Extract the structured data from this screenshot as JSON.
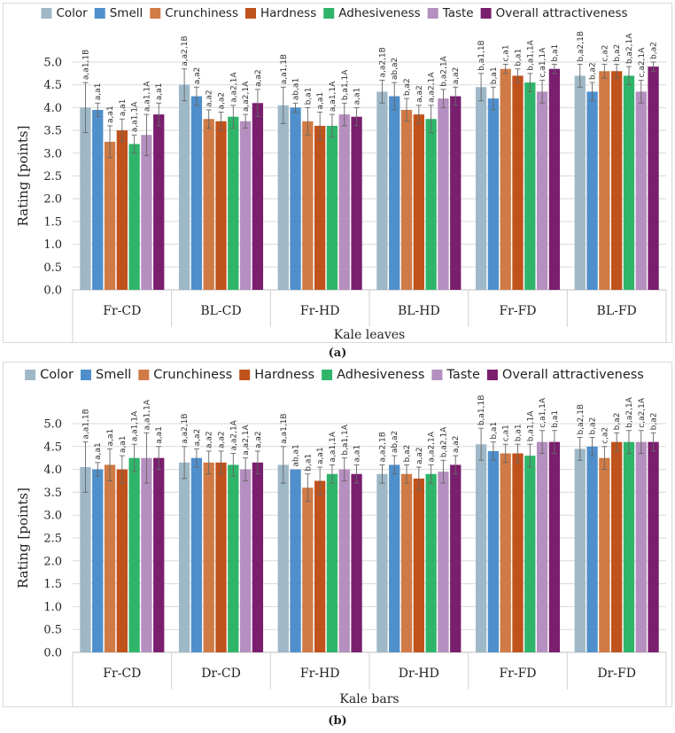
{
  "chart_data": [
    {
      "type": "bar",
      "panel_label": "(a)",
      "xlabel": "Kale leaves",
      "ylabel": "Rating [points]",
      "ylim": [
        0,
        5
      ],
      "yticks": [
        "0.0",
        "0.5",
        "1.0",
        "1.5",
        "2.0",
        "2.5",
        "3.0",
        "3.5",
        "4.0",
        "4.5",
        "5.0"
      ],
      "legend_position": "top",
      "categories": [
        "Fr-CD",
        "BL-CD",
        "Fr-HD",
        "BL-HD",
        "Fr-FD",
        "BL-FD"
      ],
      "series": [
        {
          "name": "Color",
          "color": "#9fb8c8",
          "values": [
            4.0,
            4.5,
            4.05,
            4.35,
            4.45,
            4.7
          ],
          "errors": [
            0.55,
            0.35,
            0.4,
            0.25,
            0.3,
            0.25
          ],
          "labels": [
            "a,a1,1B",
            "a,a2,1B",
            "a,a1,1B",
            "a,a2,1B",
            "b,a1,1B",
            "b,a2,1B"
          ]
        },
        {
          "name": "Smell",
          "color": "#4f8fcb",
          "values": [
            3.95,
            4.25,
            4.0,
            4.25,
            4.2,
            4.35
          ],
          "errors": [
            0.15,
            0.2,
            0.1,
            0.3,
            0.25,
            0.2
          ],
          "labels": [
            "a,a1",
            "a,a2",
            "ab,a1",
            "ab,a2",
            "b,a1",
            "b,a2"
          ]
        },
        {
          "name": "Crunchiness",
          "color": "#d07a45",
          "values": [
            3.25,
            3.75,
            3.7,
            3.95,
            4.85,
            4.8
          ],
          "errors": [
            0.35,
            0.2,
            0.3,
            0.25,
            0.1,
            0.15
          ],
          "labels": [
            "a,a1",
            "a,a2",
            "b,a1",
            "b,a2",
            "c,a1",
            "c,a2"
          ]
        },
        {
          "name": "Hardness",
          "color": "#c0521b",
          "values": [
            3.5,
            3.7,
            3.6,
            3.85,
            4.7,
            4.8
          ],
          "errors": [
            0.25,
            0.2,
            0.3,
            0.2,
            0.15,
            0.15
          ],
          "labels": [
            "a,a1",
            "a,a2",
            "a,a1",
            "a,a2",
            "b,a1",
            "b,a2"
          ]
        },
        {
          "name": "Adhesiveness",
          "color": "#2fb56a",
          "values": [
            3.2,
            3.8,
            3.6,
            3.75,
            4.55,
            4.7
          ],
          "errors": [
            0.2,
            0.25,
            0.25,
            0.3,
            0.2,
            0.2
          ],
          "labels": [
            "a,a1,1A",
            "a,a2,1A",
            "a,a1,1A",
            "a,a2,1A",
            "b,a1,1A",
            "b,a2,1A"
          ]
        },
        {
          "name": "Taste",
          "color": "#b58fbf",
          "values": [
            3.4,
            3.7,
            3.85,
            4.2,
            4.35,
            4.35
          ],
          "errors": [
            0.45,
            0.15,
            0.25,
            0.2,
            0.25,
            0.25
          ],
          "labels": [
            "a,a1,1A",
            "a,a2,1A",
            "b,a1,1A",
            "b,a2,1A",
            "c,a1,1A",
            "c,a2,1A"
          ]
        },
        {
          "name": "Overall attractiveness",
          "color": "#7a1e6e",
          "values": [
            3.85,
            4.1,
            3.8,
            4.25,
            4.85,
            4.9
          ],
          "errors": [
            0.25,
            0.3,
            0.2,
            0.2,
            0.1,
            0.1
          ],
          "labels": [
            "a,a1",
            "a,a2",
            "a,a1",
            "a,a2",
            "b,a1",
            "b,a2"
          ]
        }
      ]
    },
    {
      "type": "bar",
      "panel_label": "(b)",
      "xlabel": "Kale bars",
      "ylabel": "Rating [points]",
      "ylim": [
        0,
        5
      ],
      "yticks": [
        "0.0",
        "0.5",
        "1.0",
        "1.5",
        "2.0",
        "2.5",
        "3.0",
        "3.5",
        "4.0",
        "4.5",
        "5.0"
      ],
      "legend_position": "top",
      "categories": [
        "Fr-CD",
        "Dr-CD",
        "Fr-HD",
        "Dr-HD",
        "Fr-FD",
        "Dr-FD"
      ],
      "series": [
        {
          "name": "Color",
          "color": "#9fb8c8",
          "values": [
            4.05,
            4.15,
            4.1,
            3.9,
            4.55,
            4.45
          ],
          "errors": [
            0.55,
            0.35,
            0.4,
            0.2,
            0.35,
            0.25
          ],
          "labels": [
            "a,a1,1B",
            "a,a2,1B",
            "a,a1,1B",
            "a,a2,1B",
            "b,a1,1B",
            "b,a2,1B"
          ]
        },
        {
          "name": "Smell",
          "color": "#4f8fcb",
          "values": [
            4.0,
            4.25,
            4.0,
            4.1,
            4.4,
            4.5
          ],
          "errors": [
            0.15,
            0.2,
            0.0,
            0.2,
            0.2,
            0.2
          ],
          "labels": [
            "a,a1",
            "a,a2",
            "ab,a1",
            "ab,a2",
            "b,a1",
            "b,a2"
          ]
        },
        {
          "name": "Crunchiness",
          "color": "#d07a45",
          "values": [
            4.1,
            4.15,
            3.6,
            3.9,
            4.35,
            4.25
          ],
          "errors": [
            0.35,
            0.25,
            0.3,
            0.2,
            0.2,
            0.25
          ],
          "labels": [
            "a,a1",
            "a,a2",
            "b,a1",
            "b,a2",
            "c,a1",
            "c,a2"
          ]
        },
        {
          "name": "Hardness",
          "color": "#c0521b",
          "values": [
            4.0,
            4.15,
            3.75,
            3.8,
            4.35,
            4.6
          ],
          "errors": [
            0.3,
            0.25,
            0.3,
            0.25,
            0.2,
            0.2
          ],
          "labels": [
            "a,a1",
            "a,a2",
            "a,a1",
            "a,a2",
            "b,a1",
            "b,a2"
          ]
        },
        {
          "name": "Adhesiveness",
          "color": "#2fb56a",
          "values": [
            4.25,
            4.1,
            3.9,
            3.9,
            4.3,
            4.6
          ],
          "errors": [
            0.3,
            0.25,
            0.2,
            0.2,
            0.25,
            0.25
          ],
          "labels": [
            "a,a1,1A",
            "a,a2,1A",
            "a,a1,1A",
            "a,a2,1A",
            "b,a1,1A",
            "b,a2,1A"
          ]
        },
        {
          "name": "Taste",
          "color": "#b58fbf",
          "values": [
            4.25,
            4.0,
            4.0,
            3.95,
            4.6,
            4.6
          ],
          "errors": [
            0.55,
            0.25,
            0.25,
            0.25,
            0.25,
            0.25
          ],
          "labels": [
            "a,a1,1A",
            "a,a2,1A",
            "b,a1,1A",
            "b,a2,1A",
            "c,a1,1A",
            "c,a2,1A"
          ]
        },
        {
          "name": "Overall attractiveness",
          "color": "#7a1e6e",
          "values": [
            4.25,
            4.15,
            3.9,
            4.1,
            4.6,
            4.6
          ],
          "errors": [
            0.25,
            0.25,
            0.2,
            0.2,
            0.25,
            0.2
          ],
          "labels": [
            "a,a1",
            "a,a2",
            "a,a1",
            "a,a2",
            "b,a1",
            "b,a2"
          ]
        }
      ]
    }
  ]
}
